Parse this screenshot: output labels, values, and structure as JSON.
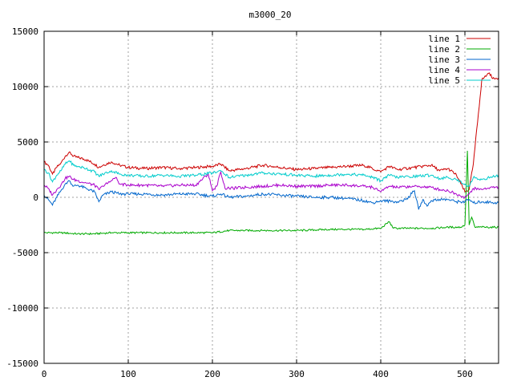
{
  "chart_data": {
    "type": "line",
    "title": "m3000_20",
    "xlabel": "",
    "ylabel": "",
    "xlim": [
      0,
      540
    ],
    "ylim": [
      -15000,
      15000
    ],
    "x_ticks": [
      0,
      100,
      200,
      300,
      400,
      500
    ],
    "y_ticks": [
      -15000,
      -10000,
      -5000,
      0,
      5000,
      10000,
      15000
    ],
    "x_tick_labels": [
      "0",
      "100",
      "200",
      "300",
      "400",
      "500"
    ],
    "y_tick_labels": [
      "-15000",
      "-10000",
      "-5000",
      "0",
      "5000",
      "10000",
      "15000"
    ],
    "grid": true,
    "legend_position": "top-right",
    "series": [
      {
        "name": "line 1",
        "color": "#cc0000",
        "points": [
          [
            0,
            3200
          ],
          [
            5,
            2900
          ],
          [
            10,
            2100
          ],
          [
            15,
            2700
          ],
          [
            20,
            3100
          ],
          [
            25,
            3700
          ],
          [
            30,
            4100
          ],
          [
            35,
            3700
          ],
          [
            40,
            3600
          ],
          [
            50,
            3400
          ],
          [
            60,
            3000
          ],
          [
            65,
            2700
          ],
          [
            70,
            2900
          ],
          [
            80,
            3200
          ],
          [
            90,
            2900
          ],
          [
            100,
            2700
          ],
          [
            120,
            2600
          ],
          [
            140,
            2700
          ],
          [
            160,
            2600
          ],
          [
            180,
            2700
          ],
          [
            200,
            2800
          ],
          [
            210,
            3000
          ],
          [
            220,
            2400
          ],
          [
            240,
            2600
          ],
          [
            260,
            2900
          ],
          [
            280,
            2700
          ],
          [
            300,
            2500
          ],
          [
            320,
            2600
          ],
          [
            340,
            2700
          ],
          [
            360,
            2800
          ],
          [
            380,
            2900
          ],
          [
            390,
            2600
          ],
          [
            400,
            2300
          ],
          [
            410,
            2800
          ],
          [
            420,
            2500
          ],
          [
            440,
            2700
          ],
          [
            460,
            2900
          ],
          [
            470,
            2400
          ],
          [
            480,
            2600
          ],
          [
            490,
            2000
          ],
          [
            500,
            500
          ],
          [
            505,
            700
          ],
          [
            510,
            3000
          ],
          [
            520,
            10600
          ],
          [
            528,
            11200
          ],
          [
            535,
            10700
          ],
          [
            540,
            10800
          ]
        ]
      },
      {
        "name": "line 2",
        "color": "#00aa00",
        "points": [
          [
            0,
            -3200
          ],
          [
            20,
            -3200
          ],
          [
            40,
            -3300
          ],
          [
            60,
            -3300
          ],
          [
            80,
            -3200
          ],
          [
            100,
            -3200
          ],
          [
            140,
            -3200
          ],
          [
            180,
            -3200
          ],
          [
            200,
            -3200
          ],
          [
            220,
            -3000
          ],
          [
            260,
            -3000
          ],
          [
            300,
            -3000
          ],
          [
            340,
            -2900
          ],
          [
            360,
            -2900
          ],
          [
            380,
            -2900
          ],
          [
            400,
            -2800
          ],
          [
            410,
            -2200
          ],
          [
            415,
            -2800
          ],
          [
            440,
            -2800
          ],
          [
            460,
            -2800
          ],
          [
            480,
            -2700
          ],
          [
            495,
            -2700
          ],
          [
            500,
            -2500
          ],
          [
            503,
            4200
          ],
          [
            505,
            -2500
          ],
          [
            508,
            -1800
          ],
          [
            512,
            -2700
          ],
          [
            520,
            -2700
          ],
          [
            540,
            -2700
          ]
        ]
      },
      {
        "name": "line 3",
        "color": "#0066cc",
        "points": [
          [
            0,
            200
          ],
          [
            5,
            -200
          ],
          [
            10,
            -700
          ],
          [
            15,
            0
          ],
          [
            20,
            600
          ],
          [
            25,
            1200
          ],
          [
            30,
            1500
          ],
          [
            35,
            1000
          ],
          [
            40,
            1100
          ],
          [
            50,
            800
          ],
          [
            60,
            500
          ],
          [
            65,
            -400
          ],
          [
            70,
            200
          ],
          [
            80,
            500
          ],
          [
            90,
            300
          ],
          [
            100,
            300
          ],
          [
            120,
            300
          ],
          [
            140,
            200
          ],
          [
            160,
            300
          ],
          [
            180,
            300
          ],
          [
            200,
            100
          ],
          [
            210,
            300
          ],
          [
            220,
            0
          ],
          [
            240,
            100
          ],
          [
            260,
            300
          ],
          [
            280,
            200
          ],
          [
            300,
            100
          ],
          [
            320,
            0
          ],
          [
            340,
            0
          ],
          [
            360,
            -100
          ],
          [
            380,
            -300
          ],
          [
            390,
            -500
          ],
          [
            400,
            -300
          ],
          [
            420,
            -400
          ],
          [
            430,
            -200
          ],
          [
            440,
            600
          ],
          [
            445,
            -1100
          ],
          [
            450,
            -200
          ],
          [
            455,
            -800
          ],
          [
            460,
            -300
          ],
          [
            470,
            -200
          ],
          [
            480,
            -200
          ],
          [
            490,
            -400
          ],
          [
            500,
            -400
          ],
          [
            505,
            -200
          ],
          [
            510,
            -500
          ],
          [
            520,
            -400
          ],
          [
            540,
            -500
          ]
        ]
      },
      {
        "name": "line 4",
        "color": "#aa00cc",
        "points": [
          [
            0,
            1100
          ],
          [
            5,
            800
          ],
          [
            10,
            200
          ],
          [
            15,
            700
          ],
          [
            20,
            1100
          ],
          [
            25,
            1700
          ],
          [
            30,
            1900
          ],
          [
            35,
            1600
          ],
          [
            40,
            1500
          ],
          [
            50,
            1300
          ],
          [
            60,
            1100
          ],
          [
            65,
            700
          ],
          [
            70,
            1000
          ],
          [
            80,
            1500
          ],
          [
            85,
            1800
          ],
          [
            90,
            1200
          ],
          [
            100,
            1100
          ],
          [
            120,
            1100
          ],
          [
            140,
            1000
          ],
          [
            160,
            1100
          ],
          [
            180,
            1100
          ],
          [
            195,
            2100
          ],
          [
            200,
            600
          ],
          [
            205,
            1000
          ],
          [
            210,
            2300
          ],
          [
            215,
            800
          ],
          [
            220,
            800
          ],
          [
            240,
            900
          ],
          [
            260,
            1000
          ],
          [
            280,
            1100
          ],
          [
            300,
            1000
          ],
          [
            320,
            1000
          ],
          [
            340,
            1100
          ],
          [
            360,
            1100
          ],
          [
            380,
            1000
          ],
          [
            390,
            900
          ],
          [
            400,
            500
          ],
          [
            410,
            1000
          ],
          [
            420,
            900
          ],
          [
            440,
            1000
          ],
          [
            460,
            900
          ],
          [
            470,
            700
          ],
          [
            480,
            600
          ],
          [
            490,
            300
          ],
          [
            500,
            0
          ],
          [
            505,
            300
          ],
          [
            510,
            800
          ],
          [
            520,
            700
          ],
          [
            530,
            900
          ],
          [
            540,
            900
          ]
        ]
      },
      {
        "name": "line 5",
        "color": "#00cccc",
        "points": [
          [
            0,
            2500
          ],
          [
            5,
            2200
          ],
          [
            10,
            1400
          ],
          [
            15,
            2000
          ],
          [
            20,
            2400
          ],
          [
            25,
            3000
          ],
          [
            30,
            3300
          ],
          [
            35,
            2900
          ],
          [
            40,
            2800
          ],
          [
            50,
            2600
          ],
          [
            60,
            2300
          ],
          [
            65,
            1900
          ],
          [
            70,
            2100
          ],
          [
            80,
            2400
          ],
          [
            90,
            2100
          ],
          [
            100,
            2000
          ],
          [
            120,
            1900
          ],
          [
            140,
            2000
          ],
          [
            160,
            1900
          ],
          [
            180,
            2000
          ],
          [
            200,
            2200
          ],
          [
            210,
            2400
          ],
          [
            220,
            1800
          ],
          [
            240,
            2000
          ],
          [
            260,
            2200
          ],
          [
            280,
            2100
          ],
          [
            300,
            2000
          ],
          [
            320,
            1900
          ],
          [
            340,
            2000
          ],
          [
            360,
            2100
          ],
          [
            380,
            2000
          ],
          [
            390,
            1800
          ],
          [
            400,
            1500
          ],
          [
            410,
            2000
          ],
          [
            420,
            1800
          ],
          [
            440,
            1900
          ],
          [
            460,
            2000
          ],
          [
            470,
            1700
          ],
          [
            480,
            1800
          ],
          [
            490,
            1600
          ],
          [
            500,
            1200
          ],
          [
            505,
            1000
          ],
          [
            510,
            1800
          ],
          [
            520,
            1600
          ],
          [
            530,
            1800
          ],
          [
            540,
            2000
          ]
        ]
      }
    ]
  }
}
